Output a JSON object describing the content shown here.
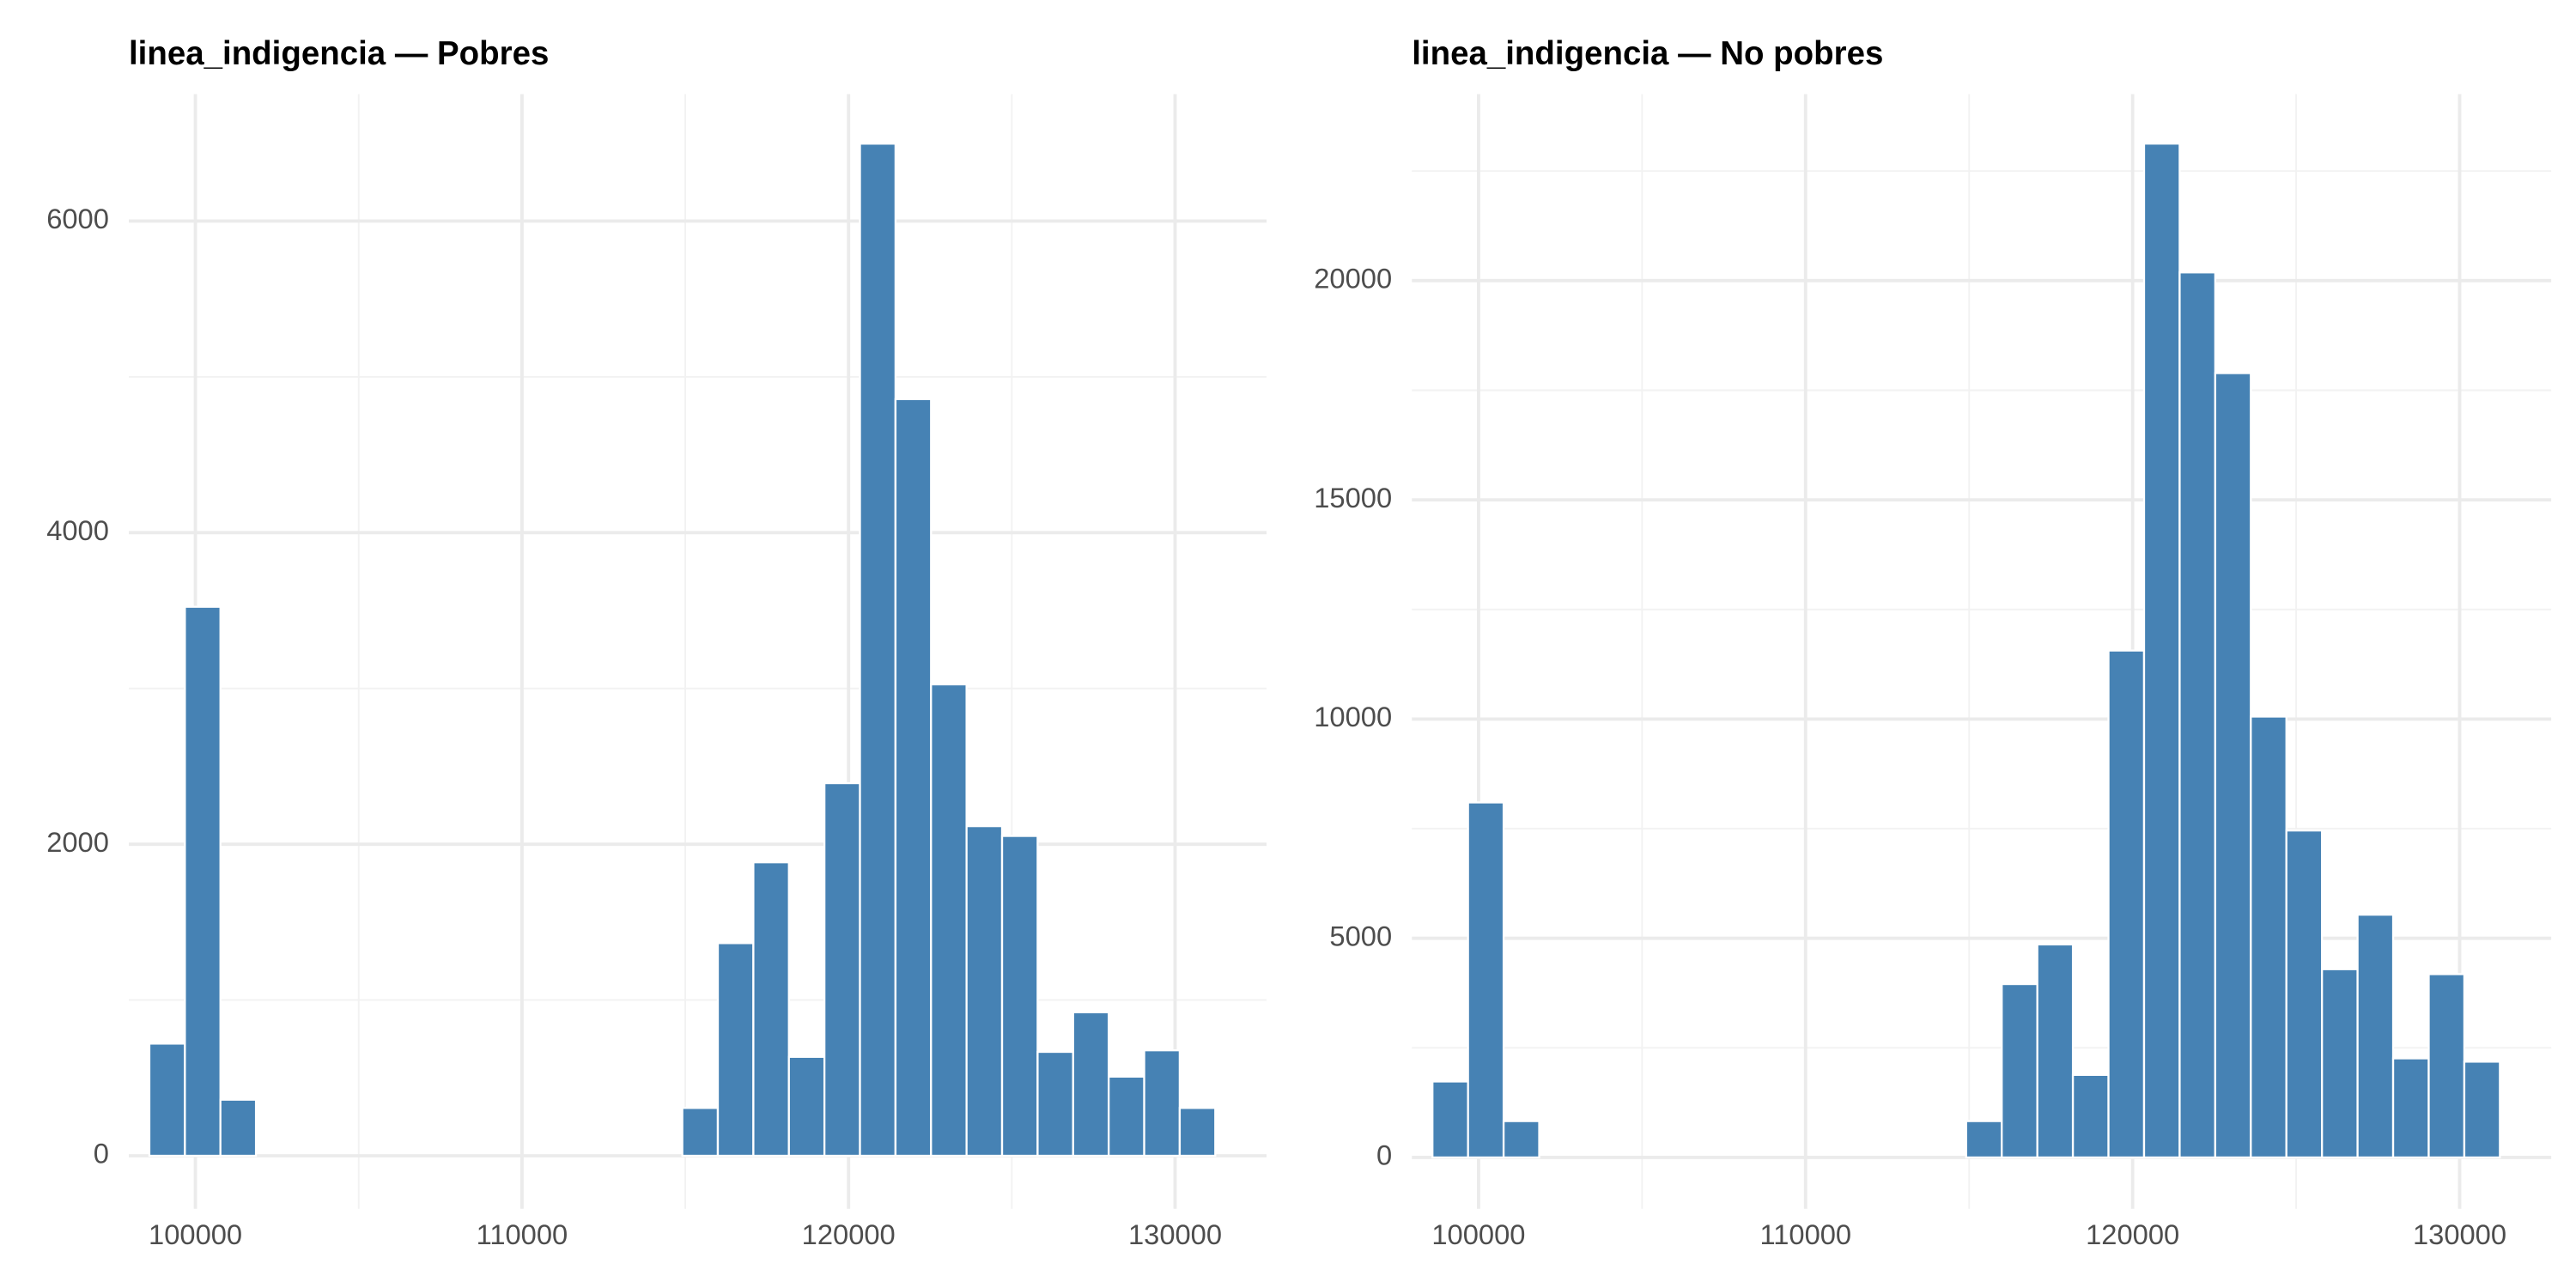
{
  "chart_data": [
    {
      "type": "histogram",
      "title": "linea_indigencia — Pobres",
      "color": "#4682b4",
      "bins": [
        98590,
        99678,
        100766,
        101854,
        102942,
        104030,
        105118,
        106206,
        107294,
        108382,
        109470,
        110558,
        111646,
        112734,
        113822,
        114910,
        115998,
        117086,
        118174,
        119262,
        120350,
        121438,
        122526,
        123614,
        124702,
        125790,
        126878,
        127966,
        129054,
        130142,
        131230
      ],
      "values": [
        720,
        3524,
        360,
        0,
        0,
        0,
        0,
        0,
        0,
        0,
        0,
        0,
        0,
        0,
        0,
        307,
        1365,
        1884,
        635,
        2392,
        6497,
        4857,
        3026,
        2116,
        2053,
        667,
        921,
        508,
        677,
        307
      ],
      "xlim": [
        97960,
        132800
      ],
      "xticks": [
        100000,
        110000,
        120000,
        130000
      ],
      "ylim": [
        -340,
        6815
      ],
      "yticks": [
        0,
        2000,
        4000,
        6000
      ],
      "grid": true
    },
    {
      "type": "histogram",
      "title": "linea_indigencia — No pobres",
      "color": "#4682b4",
      "bins": [
        98590,
        99678,
        100766,
        101854,
        102942,
        104030,
        105118,
        106206,
        107294,
        108382,
        109470,
        110558,
        111646,
        112734,
        113822,
        114910,
        115998,
        117086,
        118174,
        119262,
        120350,
        121438,
        122526,
        123614,
        124702,
        125790,
        126878,
        127966,
        129054,
        130142,
        131230
      ],
      "values": [
        1733,
        8098,
        829,
        0,
        0,
        0,
        0,
        0,
        0,
        0,
        0,
        0,
        0,
        0,
        0,
        829,
        3955,
        4859,
        1883,
        11563,
        23126,
        20188,
        17891,
        10057,
        7458,
        4294,
        5537,
        2260,
        4181,
        2185
      ],
      "xlim": [
        97960,
        132800
      ],
      "xticks": [
        100000,
        110000,
        120000,
        130000
      ],
      "ylim": [
        -1170,
        24255
      ],
      "yticks": [
        0,
        5000,
        10000,
        15000,
        20000
      ],
      "grid": true
    }
  ]
}
